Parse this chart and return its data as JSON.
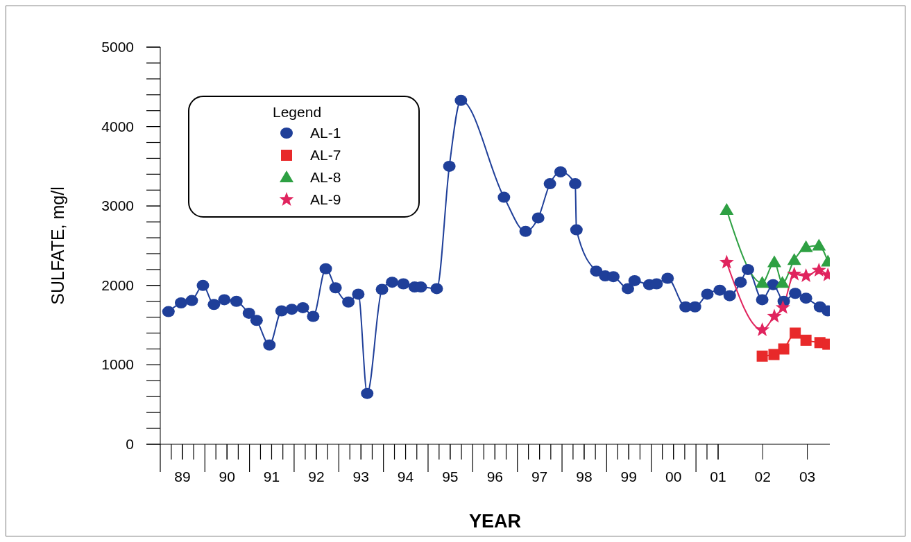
{
  "chart_data": {
    "type": "line",
    "xlabel": "YEAR",
    "ylabel": "SULFATE, mg/l",
    "legend_title": "Legend",
    "legend": "top left",
    "xlim": [
      "1989-01-01",
      "2004-01-01"
    ],
    "ylim": [
      0,
      5000
    ],
    "xticks": [
      {
        "value": "1989-07-01",
        "label": "89"
      },
      {
        "value": "1990-07-01",
        "label": "90"
      },
      {
        "value": "1991-07-01",
        "label": "91"
      },
      {
        "value": "1992-07-01",
        "label": "92"
      },
      {
        "value": "1993-07-01",
        "label": "93"
      },
      {
        "value": "1994-07-01",
        "label": "94"
      },
      {
        "value": "1995-07-01",
        "label": "95"
      },
      {
        "value": "1996-07-01",
        "label": "96"
      },
      {
        "value": "1997-07-01",
        "label": "97"
      },
      {
        "value": "1998-07-01",
        "label": "98"
      },
      {
        "value": "1999-07-01",
        "label": "99"
      },
      {
        "value": "2000-07-01",
        "label": "00"
      },
      {
        "value": "2001-07-01",
        "label": "01"
      },
      {
        "value": "2002-07-01",
        "label": "02"
      },
      {
        "value": "2003-07-01",
        "label": "03"
      }
    ],
    "yticks": [
      0,
      1000,
      2000,
      3000,
      4000,
      5000
    ],
    "grid": false,
    "line_style": "solid",
    "series": [
      {
        "name": "AL-1",
        "color": "#1f3f99",
        "marker": "circle",
        "x": [
          "1989-03-09",
          "1989-06-20",
          "1989-09-16",
          "1989-12-16",
          "1990-03-16",
          "1990-06-09",
          "1990-09-16",
          "1990-12-27",
          "1991-02-28",
          "1991-06-13",
          "1991-09-20",
          "1991-12-13",
          "1992-03-13",
          "1992-06-05",
          "1992-09-16",
          "1992-12-05",
          "1993-03-20",
          "1993-06-09",
          "1993-08-21",
          "1993-12-20",
          "1994-03-13",
          "1994-06-13",
          "1994-09-13",
          "1994-11-03",
          "1995-03-13",
          "1995-06-24",
          "1995-09-27",
          "1996-09-13",
          "1997-03-09",
          "1997-06-20",
          "1997-09-24",
          "1997-12-20",
          "1998-04-19",
          "1998-04-29",
          "1998-10-08",
          "1998-12-20",
          "1999-02-25",
          "1999-06-24",
          "1999-08-18",
          "1999-12-16",
          "2000-02-14",
          "2000-05-14",
          "2000-10-08",
          "2000-12-24",
          "2001-04-04",
          "2001-07-15",
          "2001-10-04",
          "2002-01-01",
          "2002-03-02",
          "2002-06-27",
          "2002-09-24",
          "2002-12-20",
          "2003-03-24",
          "2003-06-20",
          "2003-10-12",
          "2003-12-16"
        ],
        "values": [
          1670,
          1780,
          1810,
          2000,
          1760,
          1820,
          1800,
          1650,
          1560,
          1250,
          1680,
          1700,
          1720,
          1610,
          2210,
          1970,
          1790,
          1890,
          640,
          1950,
          2040,
          2020,
          1980,
          1980,
          1960,
          3500,
          4330,
          3110,
          2680,
          2850,
          3280,
          3430,
          3280,
          2700,
          2180,
          2120,
          2110,
          1960,
          2060,
          2010,
          2020,
          2090,
          1730,
          1730,
          1890,
          1940,
          1870,
          2040,
          2200,
          1820,
          2010,
          1800,
          1900,
          1840,
          1730,
          1680
        ]
      },
      {
        "name": "AL-7",
        "color": "#e8292a",
        "marker": "square",
        "x": [
          "2002-06-27",
          "2002-10-01",
          "2002-12-20",
          "2003-03-24",
          "2003-06-20",
          "2003-10-12",
          "2003-12-16"
        ],
        "values": [
          1110,
          1130,
          1200,
          1400,
          1310,
          1280,
          1260
        ]
      },
      {
        "name": "AL-8",
        "color": "#2ea043",
        "marker": "triangle",
        "x": [
          "2001-09-09",
          "2002-06-27",
          "2002-10-04",
          "2002-12-09",
          "2003-03-16",
          "2003-06-20",
          "2003-10-04",
          "2003-12-16"
        ],
        "values": [
          2950,
          2030,
          2290,
          2030,
          2320,
          2480,
          2500,
          2300
        ]
      },
      {
        "name": "AL-9",
        "color": "#e0245e",
        "marker": "star",
        "x": [
          "2001-09-09",
          "2002-06-27",
          "2002-10-04",
          "2002-12-13",
          "2003-03-16",
          "2003-06-20",
          "2003-10-04",
          "2003-12-16"
        ],
        "values": [
          2290,
          1440,
          1610,
          1720,
          2140,
          2120,
          2190,
          2130
        ]
      }
    ]
  }
}
